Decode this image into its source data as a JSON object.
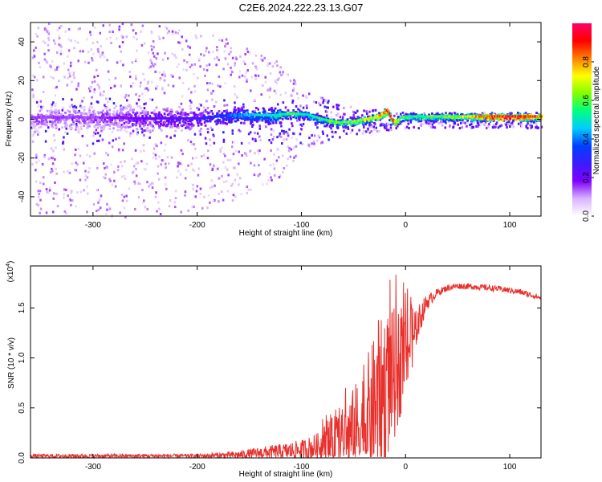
{
  "title": "C2E6.2024.222.23.13.G07",
  "chart_data": [
    {
      "type": "heatmap",
      "xlabel": "Height of straight line (km)",
      "ylabel": "Frequency (Hz)",
      "xlim": [
        -360,
        130
      ],
      "ylim": [
        -50,
        50
      ],
      "x_ticks": [
        -300,
        -200,
        -100,
        0,
        100
      ],
      "y_ticks": [
        -40,
        -20,
        0,
        20,
        40
      ],
      "colorbar": {
        "label": "Normalized spectral amplitude",
        "range": [
          0,
          1
        ],
        "ticks": [
          "0.0",
          "0.2",
          "0.4",
          "0.6",
          "0.8"
        ],
        "tick_values": [
          0.0,
          0.2,
          0.4,
          0.6,
          0.8
        ],
        "colors": [
          "#ffffff",
          "#d9b3ff",
          "#8000ff",
          "#3c1cff",
          "#0040ff",
          "#00ccff",
          "#00ff80",
          "#80ff00",
          "#ffff00",
          "#ff8000",
          "#ff0000",
          "#ff0066"
        ]
      },
      "ridge": {
        "x": [
          -360,
          -300,
          -250,
          -200,
          -170,
          -150,
          -130,
          -110,
          -95,
          -80,
          -65,
          -50,
          -40,
          -30,
          -22,
          -18,
          -14,
          -10,
          -5,
          0,
          20,
          50,
          80,
          100,
          130
        ],
        "freq": [
          1,
          1,
          0.5,
          0.5,
          2,
          2.5,
          2,
          3,
          2.5,
          0,
          -1.5,
          -1,
          0,
          1,
          3,
          5,
          0,
          -1.5,
          1,
          1.5,
          1.5,
          1.5,
          1.5,
          1.5,
          1.5
        ],
        "amplitude": [
          0.15,
          0.15,
          0.2,
          0.25,
          0.35,
          0.45,
          0.5,
          0.55,
          0.5,
          0.55,
          0.6,
          0.6,
          0.65,
          0.7,
          0.8,
          0.85,
          0.9,
          0.7,
          0.55,
          0.55,
          0.55,
          0.6,
          0.85,
          0.9,
          0.8
        ],
        "spread_hz": [
          4,
          4,
          4,
          3.5,
          3,
          2.5,
          2.5,
          2.5,
          2.5,
          2.5,
          2.5,
          2.5,
          2.5,
          2.5,
          2.5,
          2.5,
          2.5,
          2.5,
          2.5,
          2.5,
          2.5,
          2.5,
          2.5,
          2.5,
          2.5
        ]
      },
      "noise_extent_hz": {
        "x": [
          -360,
          -250,
          -180,
          -120,
          -100,
          -60,
          -30,
          0
        ],
        "halfwidth": [
          50,
          50,
          45,
          30,
          15,
          8,
          6,
          4
        ]
      }
    },
    {
      "type": "line",
      "xlabel": "Height of straight line (km)",
      "ylabel": "SNR (10 * v/v)",
      "y_multiplier": "(x10",
      "y_multiplier_exp": "4",
      "xlim": [
        -360,
        130
      ],
      "ylim": [
        0,
        1.92
      ],
      "x_ticks": [
        -300,
        -200,
        -100,
        0,
        100
      ],
      "y_ticks": [
        0.0,
        0.5,
        1.0,
        1.5
      ],
      "y_tick_labels": [
        "0.0",
        "0.5",
        "1.0",
        "1.5"
      ],
      "color": "#e8302c",
      "series": [
        {
          "x": [
            -360,
            -300,
            -250,
            -200,
            -160,
            -140,
            -120,
            -100,
            -80,
            -60,
            -50,
            -40,
            -30,
            -20,
            -10,
            0,
            10,
            20,
            30,
            40,
            50,
            70,
            90,
            110,
            130
          ],
          "values": [
            0.02,
            0.02,
            0.02,
            0.02,
            0.03,
            0.05,
            0.06,
            0.08,
            0.12,
            0.18,
            0.25,
            0.35,
            0.5,
            0.7,
            0.85,
            1.05,
            1.3,
            1.55,
            1.65,
            1.7,
            1.72,
            1.71,
            1.69,
            1.66,
            1.6
          ],
          "noise_amplitude": [
            0.02,
            0.02,
            0.02,
            0.02,
            0.04,
            0.06,
            0.08,
            0.1,
            0.15,
            0.25,
            0.35,
            0.45,
            0.55,
            0.6,
            0.5,
            0.35,
            0.2,
            0.08,
            0.04,
            0.03,
            0.03,
            0.03,
            0.03,
            0.03,
            0.03
          ]
        }
      ]
    }
  ]
}
